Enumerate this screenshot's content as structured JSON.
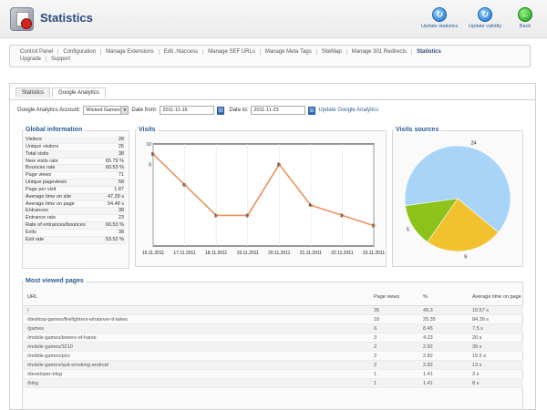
{
  "header": {
    "title": "Statistics",
    "tools": [
      {
        "label": "Update statistics",
        "icon": "refresh-icon"
      },
      {
        "label": "Update validity",
        "icon": "refresh-icon"
      },
      {
        "label": "Back",
        "icon": "back-arrow-icon"
      }
    ]
  },
  "menu": {
    "row1": [
      "Control Panel",
      "Configuration",
      "Manage Extensions",
      "Edit .htaccess",
      "Manage SEF URLs",
      "Manage Meta Tags",
      "SiteMap",
      "Manage 301 Redirects",
      "Statistics"
    ],
    "row2": [
      "Upgrade",
      "Support"
    ],
    "active": "Statistics"
  },
  "tabs": [
    "Statistics",
    "Google Analytics"
  ],
  "active_tab": "Google Analytics",
  "filter": {
    "account_label": "Google Analytics Account:",
    "account_value": "Wicked Games",
    "date_from_label": "Date from:",
    "date_from": "2011-11-16",
    "date_to_label": "Date to:",
    "date_to": "2011-11-23",
    "update_link": "Update Google Analytics"
  },
  "global_info": {
    "title": "Global information",
    "rows": [
      {
        "label": "Visitors",
        "value": "28"
      },
      {
        "label": "Unique visitors",
        "value": "25"
      },
      {
        "label": "Total visits",
        "value": "38"
      },
      {
        "label": "New visits rate",
        "value": "65.79 %"
      },
      {
        "label": "Bounces rate",
        "value": "60.53 %"
      },
      {
        "label": "Page views",
        "value": "71"
      },
      {
        "label": "Unique pageviews",
        "value": "58"
      },
      {
        "label": "Page per visit",
        "value": "1.87"
      },
      {
        "label": "Average time on site",
        "value": "47.29 s"
      },
      {
        "label": "Average time on page",
        "value": "54.48 s"
      },
      {
        "label": "Entrances",
        "value": "38"
      },
      {
        "label": "Entrance rate",
        "value": "23"
      },
      {
        "label": "Rate of entrances/bounces",
        "value": "60.53 %"
      },
      {
        "label": "Exits",
        "value": "38"
      },
      {
        "label": "Exit rate",
        "value": "53.52 %"
      }
    ]
  },
  "visits_title": "Visits",
  "sources_title": "Visits sources",
  "most_viewed": {
    "title": "Most viewed pages",
    "headers": {
      "url": "URL",
      "page_views": "Page views",
      "pct": "%",
      "avg_time": "Average time on page"
    },
    "rows": [
      {
        "url": "/",
        "page_views": "35",
        "pct": "49.3",
        "avg_time": "10.57 s"
      },
      {
        "url": "/desktop-games/firefighters-whatever-it-takes",
        "page_views": "18",
        "pct": "25.35",
        "avg_time": "84.39 s"
      },
      {
        "url": "/games",
        "page_views": "6",
        "pct": "8.45",
        "avg_time": "7.5 s"
      },
      {
        "url": "/mobile-games/towers-of-hanoi",
        "page_views": "3",
        "pct": "4.23",
        "avg_time": "20 s"
      },
      {
        "url": "/mobile-games/3210",
        "page_views": "2",
        "pct": "2.82",
        "avg_time": "39 s"
      },
      {
        "url": "/mobile-games/piro",
        "page_views": "2",
        "pct": "2.82",
        "avg_time": "15.5 s"
      },
      {
        "url": "/mobile-games/quit-smoking-android",
        "page_views": "2",
        "pct": "2.82",
        "avg_time": "13 s"
      },
      {
        "url": "/developer-blog",
        "page_views": "1",
        "pct": "1.41",
        "avg_time": "3 s"
      },
      {
        "url": "/blog",
        "page_views": "1",
        "pct": "1.41",
        "avg_time": "8 s"
      }
    ]
  },
  "chart_data": [
    {
      "type": "line",
      "title": "Visits",
      "categories": [
        "16.11.2011",
        "17.11.2011",
        "18.11.2011",
        "19.11.2011",
        "20.11.2011",
        "21.11.2011",
        "22.11.2011",
        "23.11.2011"
      ],
      "values": [
        9,
        6,
        3,
        3,
        8,
        4,
        3,
        2
      ],
      "ylim": [
        0,
        10
      ],
      "yticks": [
        "10",
        "8"
      ],
      "color": "#e8925a"
    },
    {
      "type": "pie",
      "title": "Visits sources",
      "values": [
        24,
        9,
        5
      ],
      "colors": [
        "#a8d4f8",
        "#f2c12e",
        "#8cc21a"
      ]
    }
  ]
}
